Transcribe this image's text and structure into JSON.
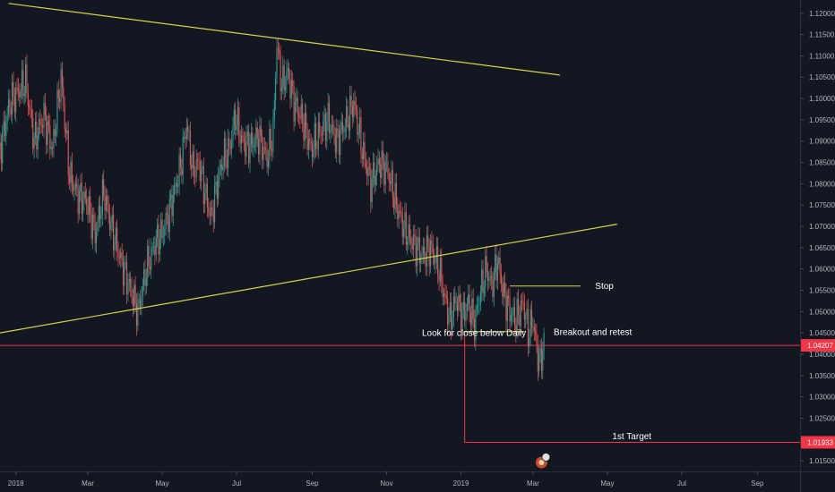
{
  "chart_data": {
    "type": "candlestick",
    "y_axis": {
      "position": "right",
      "min": 1.0125,
      "max": 1.1231,
      "ticks": [
        "1.12000",
        "1.11500",
        "1.11000",
        "1.10500",
        "1.10000",
        "1.09500",
        "1.09000",
        "1.08500",
        "1.08000",
        "1.07500",
        "1.07000",
        "1.06500",
        "1.06000",
        "1.05500",
        "1.05000",
        "1.04500",
        "1.04000",
        "1.03500",
        "1.03000",
        "1.02500",
        "1.02000",
        "1.01500"
      ]
    },
    "x_axis": {
      "labels": [
        "2018",
        "Mar",
        "May",
        "Jul",
        "Sep",
        "Nov",
        "2019",
        "Mar",
        "May",
        "Jul",
        "Sep"
      ],
      "label_positions_days": [
        0,
        59,
        120,
        181,
        243,
        304,
        365,
        424,
        485,
        546,
        608
      ],
      "range_days": [
        -13,
        643
      ]
    },
    "price_tags": [
      {
        "value": 1.04207,
        "label": "1.04207",
        "color": "#f23645"
      },
      {
        "value": 1.01933,
        "label": "1.01933",
        "color": "#f23645"
      }
    ],
    "price_path": {
      "up_color": "#26a69a",
      "down_color": "#ef5350",
      "points": [
        [
          -13,
          1.088
        ],
        [
          -5,
          1.099
        ],
        [
          8,
          1.104
        ],
        [
          15,
          1.09
        ],
        [
          23,
          1.096
        ],
        [
          30,
          1.088
        ],
        [
          37,
          1.105
        ],
        [
          44,
          1.082
        ],
        [
          51,
          1.077
        ],
        [
          58,
          1.076
        ],
        [
          65,
          1.068
        ],
        [
          72,
          1.078
        ],
        [
          79,
          1.069
        ],
        [
          86,
          1.062
        ],
        [
          93,
          1.056
        ],
        [
          100,
          1.05
        ],
        [
          107,
          1.06
        ],
        [
          114,
          1.066
        ],
        [
          121,
          1.069
        ],
        [
          128,
          1.076
        ],
        [
          135,
          1.084
        ],
        [
          140,
          1.094
        ],
        [
          145,
          1.083
        ],
        [
          150,
          1.085
        ],
        [
          155,
          1.078
        ],
        [
          160,
          1.072
        ],
        [
          165,
          1.08
        ],
        [
          170,
          1.086
        ],
        [
          175,
          1.088
        ],
        [
          180,
          1.096
        ],
        [
          185,
          1.09
        ],
        [
          192,
          1.089
        ],
        [
          199,
          1.091
        ],
        [
          206,
          1.086
        ],
        [
          211,
          1.092
        ],
        [
          214,
          1.113
        ],
        [
          218,
          1.103
        ],
        [
          223,
          1.106
        ],
        [
          228,
          1.099
        ],
        [
          235,
          1.095
        ],
        [
          242,
          1.088
        ],
        [
          249,
          1.092
        ],
        [
          256,
          1.095
        ],
        [
          263,
          1.09
        ],
        [
          270,
          1.094
        ],
        [
          277,
          1.099
        ],
        [
          284,
          1.088
        ],
        [
          291,
          1.08
        ],
        [
          298,
          1.085
        ],
        [
          305,
          1.083
        ],
        [
          312,
          1.075
        ],
        [
          319,
          1.069
        ],
        [
          326,
          1.066
        ],
        [
          333,
          1.063
        ],
        [
          340,
          1.065
        ],
        [
          347,
          1.06
        ],
        [
          351,
          1.054
        ],
        [
          356,
          1.048
        ],
        [
          361,
          1.053
        ],
        [
          366,
          1.049
        ],
        [
          371,
          1.052
        ],
        [
          376,
          1.047
        ],
        [
          381,
          1.055
        ],
        [
          386,
          1.06
        ],
        [
          390,
          1.056
        ],
        [
          395,
          1.062
        ],
        [
          400,
          1.054
        ],
        [
          405,
          1.05
        ],
        [
          410,
          1.048
        ],
        [
          416,
          1.052
        ],
        [
          420,
          1.045
        ],
        [
          424,
          1.048
        ],
        [
          427,
          1.041
        ],
        [
          430,
          1.038
        ],
        [
          433,
          1.043
        ]
      ]
    },
    "trendlines": [
      {
        "color": "#d4d647",
        "from": [
          -6,
          1.1223
        ],
        "to": [
          446,
          1.1055
        ]
      },
      {
        "color": "#d4d647",
        "from": [
          -13,
          1.045
        ],
        "to": [
          493,
          1.0705
        ]
      }
    ],
    "horizontal_lines": [
      {
        "color": "#d4d647",
        "from": [
          405,
          1.056
        ],
        "to": [
          463,
          1.056
        ]
      },
      {
        "color": "#d4d647",
        "from": [
          367,
          1.0453
        ],
        "to": [
          417,
          1.0453
        ]
      },
      {
        "color": "#f23645",
        "from": [
          -13,
          1.04207
        ],
        "to": [
          643,
          1.04207
        ]
      },
      {
        "color": "#f23645",
        "from": [
          368,
          1.01933
        ],
        "to": [
          643,
          1.01933
        ]
      }
    ],
    "vertical_lines": [
      {
        "color": "#f23645",
        "from": [
          368,
          1.0453
        ],
        "to": [
          368,
          1.01933
        ]
      }
    ],
    "annotations": [
      {
        "text": "Stop",
        "at": [
          475,
          1.056
        ]
      },
      {
        "text": "Look for close below Daily",
        "at": [
          333,
          1.045
        ]
      },
      {
        "text": "Breakout and retest",
        "at": [
          441,
          1.0452
        ]
      },
      {
        "text": "1st Target",
        "at": [
          489,
          1.0208
        ]
      }
    ],
    "event_marker": {
      "icon": "news-flag-icon",
      "at_day": 431
    }
  }
}
